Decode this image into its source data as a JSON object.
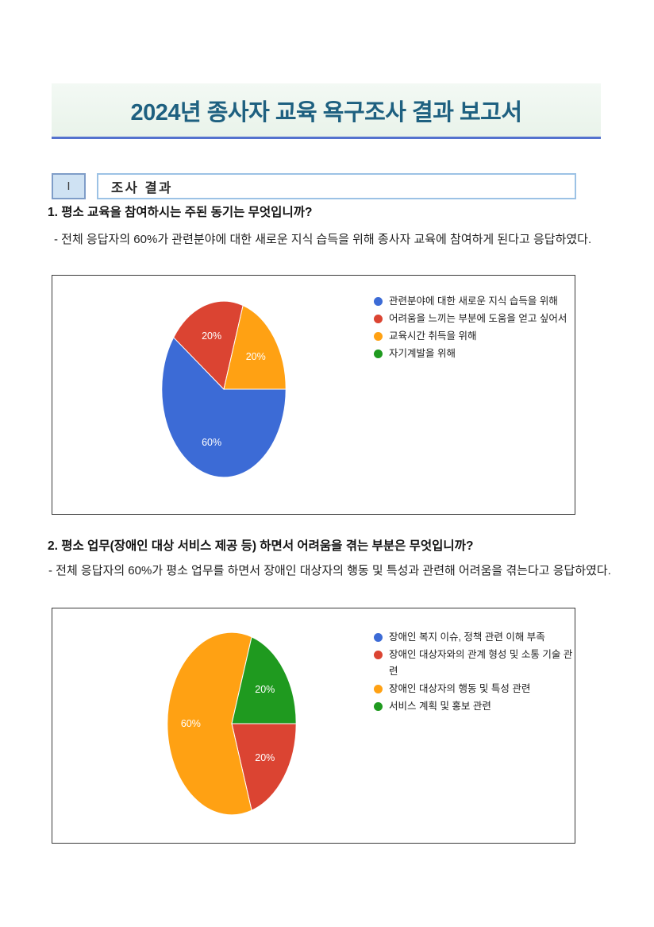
{
  "header": {
    "title": "2024년 종사자 교육 욕구조사 결과 보고서"
  },
  "section": {
    "numeral": "I",
    "title": "조사 결과"
  },
  "questions": [
    {
      "heading": "1. 평소 교육을 참여하시는 주된 동기는 무엇입니까?",
      "summary": "- 전체 응답자의 60%가 관련분야에 대한 새로운 지식 습득을 위해 종사자 교육에 참여하게 된다고 응답하였다."
    },
    {
      "heading": "2. 평소 업무(장애인 대상 서비스 제공 등) 하면서 어려움을 겪는 부분은 무엇입니까?",
      "summary": "- 전체 응답자의 60%가 평소 업무를 하면서 장애인 대상자의 행동 및 특성과 관련해 어려움을 겪는다고 응답하였다."
    }
  ],
  "chart_data": [
    {
      "type": "pie",
      "shape": "ellipse",
      "labels": [
        "관련분야에 대한 새로운 지식 습득을 위해",
        "어려움을 느끼는 부분에 도움을 얻고 싶어서",
        "교육시간 취득을 위해",
        "자기계발을 위해"
      ],
      "values": [
        60,
        20,
        20,
        0
      ],
      "colors": [
        "#3c6bd6",
        "#db4432",
        "#ffa113",
        "#1f9a1f"
      ],
      "slice_label_suffix": "%",
      "slice_label_color": "#ffffff",
      "legend_position": "right",
      "start_angle": "3-oclock",
      "direction": "clockwise"
    },
    {
      "type": "pie",
      "shape": "ellipse",
      "labels": [
        "장애인 복지 이슈, 정책 관련 이해 부족",
        "장애인 대상자와의 관계 형성 및 소통 기술 관련",
        "장애인 대상자의 행동 및 특성 관련",
        "서비스 계획 및 홍보 관련"
      ],
      "values": [
        0,
        20,
        60,
        20
      ],
      "colors": [
        "#3c6bd6",
        "#db4432",
        "#ffa113",
        "#1f9a1f"
      ],
      "slice_label_suffix": "%",
      "slice_label_color": "#ffffff",
      "legend_position": "right",
      "start_angle": "3-oclock",
      "direction": "clockwise"
    }
  ],
  "theme": {
    "banner_bg": "#ecf4ec",
    "banner_underline": "#5472ce",
    "banner_text": "#1e6080",
    "section_num_bg": "#cfe2f3",
    "section_num_border": "#7f9dc8",
    "section_title_border": "#9cc2e5",
    "chart_box_border": "#3a3a3a"
  }
}
